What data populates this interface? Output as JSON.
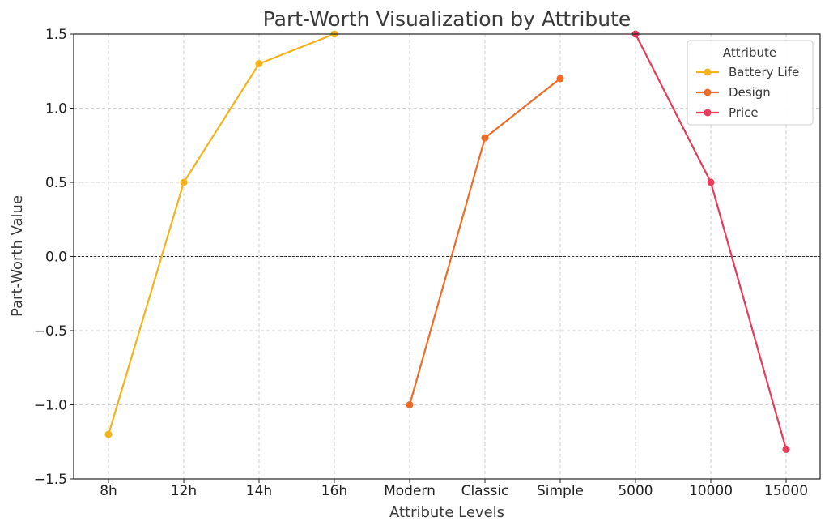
{
  "chart_data": {
    "type": "line",
    "title": "Part-Worth Visualization by Attribute",
    "xlabel": "Attribute Levels",
    "ylabel": "Part-Worth Value",
    "categories": [
      "8h",
      "12h",
      "14h",
      "16h",
      "Modern",
      "Classic",
      "Simple",
      "5000",
      "10000",
      "15000"
    ],
    "ylim": [
      -1.5,
      1.5
    ],
    "yticks": [
      -1.5,
      -1.0,
      -0.5,
      0.0,
      0.5,
      1.0,
      1.5
    ],
    "ytick_labels": [
      "−1.5",
      "−1.0",
      "−0.5",
      "0.0",
      "0.5",
      "1.0",
      "1.5"
    ],
    "grid": true,
    "reference_line": 0.0,
    "legend": {
      "title": "Attribute",
      "placement": "top-right"
    },
    "series": [
      {
        "name": "Battery Life",
        "color": "#f5b21b",
        "points": [
          {
            "x": "8h",
            "y": -1.2
          },
          {
            "x": "12h",
            "y": 0.5
          },
          {
            "x": "14h",
            "y": 1.3
          },
          {
            "x": "16h",
            "y": 1.5
          }
        ]
      },
      {
        "name": "Design",
        "color": "#ef6c28",
        "points": [
          {
            "x": "Modern",
            "y": -1.0
          },
          {
            "x": "Classic",
            "y": 0.8
          },
          {
            "x": "Simple",
            "y": 1.2
          }
        ]
      },
      {
        "name": "Price",
        "color": "#e83a59",
        "points": [
          {
            "x": "5000",
            "y": 1.5
          },
          {
            "x": "10000",
            "y": 0.5
          },
          {
            "x": "15000",
            "y": -1.3
          }
        ]
      }
    ]
  }
}
